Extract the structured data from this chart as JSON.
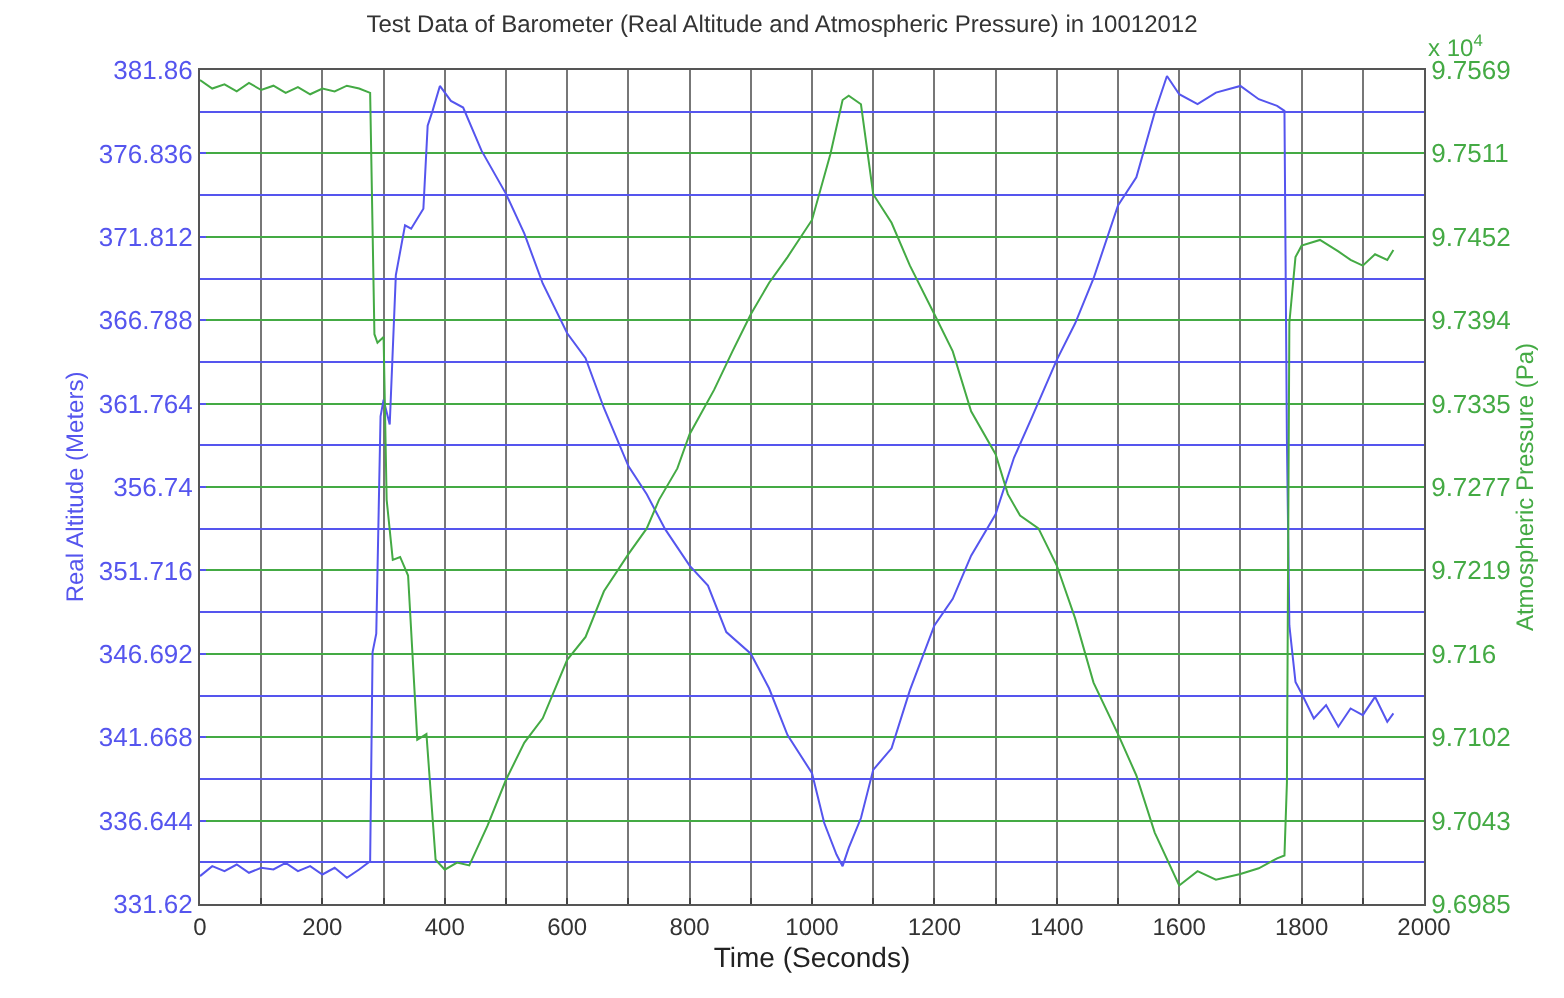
{
  "chart_data": {
    "type": "line",
    "title": "Test Data of Barometer (Real Altitude and Atmospheric Pressure) in 10012012",
    "xlabel": "Time (Seconds)",
    "ylabel": "Real Altitude (Meters)",
    "y2label": "Atmospheric Pressure (Pa)",
    "annotations": [
      "x 10$^{4}$"
    ],
    "grid": true,
    "xlim": [
      0,
      2000
    ],
    "xticks": [
      0,
      {
        "value": 100,
        "label": null
      },
      200,
      {
        "value": 300,
        "label": null
      },
      400,
      {
        "value": 500,
        "label": null
      },
      600,
      {
        "value": 700,
        "label": null
      },
      800,
      {
        "value": 900,
        "label": null
      },
      1000,
      {
        "value": 1100,
        "label": null
      },
      1200,
      {
        "value": 1300,
        "label": null
      },
      1400,
      {
        "value": 1500,
        "label": null
      },
      1600,
      {
        "value": 1700,
        "label": null
      },
      1800,
      {
        "value": 1900,
        "label": null
      },
      2000
    ],
    "ylim": [
      331.62,
      381.86
    ],
    "yticks": [
      331.62,
      {
        "value": 334.132,
        "label": null
      },
      336.644,
      {
        "value": 339.156,
        "label": null
      },
      341.668,
      {
        "value": 344.18,
        "label": null
      },
      346.692,
      {
        "value": 349.204,
        "label": null
      },
      351.716,
      {
        "value": 354.228,
        "label": null
      },
      356.74,
      {
        "value": 359.252,
        "label": null
      },
      361.764,
      {
        "value": 364.276,
        "label": null
      },
      366.788,
      {
        "value": 369.3,
        "label": null
      },
      371.812,
      {
        "value": 374.324,
        "label": null
      },
      376.836,
      {
        "value": 379.348,
        "label": null
      },
      381.86
    ],
    "y2lim": [
      9.6985,
      9.7569
    ],
    "y2ticks": [
      9.6985,
      9.7043,
      9.7102,
      9.716,
      9.7219,
      9.7277,
      9.7335,
      9.7394,
      9.7452,
      9.7511,
      9.7569
    ],
    "series": [
      {
        "color": "#5555ee",
        "x": [
          0,
          20,
          40,
          60,
          80,
          100,
          120,
          140,
          160,
          180,
          200,
          220,
          240,
          260,
          278,
          282,
          288,
          295,
          300,
          310,
          320,
          335,
          345,
          365,
          372,
          380,
          392,
          410,
          430,
          460,
          500,
          530,
          560,
          600,
          630,
          660,
          700,
          730,
          760,
          800,
          830,
          860,
          900,
          930,
          960,
          1000,
          1020,
          1040,
          1050,
          1060,
          1080,
          1100,
          1130,
          1160,
          1200,
          1230,
          1260,
          1300,
          1330,
          1360,
          1400,
          1430,
          1460,
          1500,
          1530,
          1560,
          1580,
          1600,
          1630,
          1660,
          1700,
          1730,
          1760,
          1772,
          1776,
          1780,
          1790,
          1800,
          1820,
          1840,
          1860,
          1880,
          1900,
          1920,
          1940,
          1950
        ],
        "values": [
          333.3,
          333.9,
          333.6,
          334.0,
          333.5,
          333.8,
          333.7,
          334.1,
          333.6,
          333.9,
          333.4,
          333.8,
          333.2,
          333.7,
          334.2,
          346.8,
          347.9,
          361.0,
          362.0,
          360.5,
          369.5,
          372.5,
          372.3,
          373.5,
          378.5,
          379.4,
          380.9,
          380.0,
          379.6,
          377.0,
          374.4,
          372.0,
          369.0,
          366.0,
          364.5,
          361.5,
          358.0,
          356.3,
          354.2,
          352.0,
          350.8,
          348.0,
          346.7,
          344.6,
          341.8,
          339.5,
          336.5,
          334.6,
          333.9,
          335.0,
          336.8,
          339.7,
          341.0,
          344.5,
          348.4,
          350.0,
          352.6,
          355.1,
          358.5,
          361.0,
          364.4,
          366.6,
          369.3,
          373.7,
          375.4,
          379.3,
          381.5,
          380.4,
          379.8,
          380.5,
          380.9,
          380.1,
          379.7,
          379.4,
          359.6,
          348.4,
          345.0,
          344.3,
          342.8,
          343.6,
          342.3,
          343.4,
          343.0,
          344.1,
          342.6,
          343.1
        ]
      },
      {
        "color": "#44aa44",
        "axis": "y2",
        "x": [
          0,
          20,
          40,
          60,
          80,
          100,
          120,
          140,
          160,
          180,
          200,
          220,
          240,
          260,
          278,
          285,
          290,
          300,
          305,
          315,
          327,
          340,
          355,
          370,
          385,
          400,
          420,
          440,
          470,
          500,
          530,
          560,
          600,
          630,
          660,
          700,
          730,
          750,
          780,
          800,
          840,
          870,
          900,
          930,
          960,
          1000,
          1030,
          1050,
          1060,
          1080,
          1100,
          1130,
          1160,
          1200,
          1230,
          1260,
          1300,
          1320,
          1340,
          1370,
          1400,
          1430,
          1460,
          1500,
          1530,
          1560,
          1600,
          1630,
          1660,
          1700,
          1730,
          1760,
          1772,
          1776,
          1780,
          1790,
          1800,
          1830,
          1860,
          1880,
          1900,
          1920,
          1940,
          1950
        ],
        "values": [
          9.7562,
          9.7556,
          9.7559,
          9.7554,
          9.756,
          9.7555,
          9.7558,
          9.7553,
          9.7557,
          9.7552,
          9.7556,
          9.7554,
          9.7558,
          9.7556,
          9.7553,
          9.7384,
          9.7378,
          9.7382,
          9.7268,
          9.7226,
          9.7228,
          9.7215,
          9.71,
          9.7104,
          9.7016,
          9.7009,
          9.7014,
          9.7012,
          9.704,
          9.7072,
          9.7098,
          9.7115,
          9.7156,
          9.7172,
          9.7204,
          9.723,
          9.7248,
          9.7268,
          9.729,
          9.7314,
          9.7345,
          9.7372,
          9.7398,
          9.742,
          9.7438,
          9.7464,
          9.751,
          9.7548,
          9.7551,
          9.7545,
          9.7482,
          9.7462,
          9.7432,
          9.7398,
          9.7372,
          9.733,
          9.73,
          9.7272,
          9.7257,
          9.7248,
          9.7222,
          9.7185,
          9.714,
          9.7104,
          9.7075,
          9.7035,
          9.6998,
          9.7008,
          9.7002,
          9.7006,
          9.701,
          9.7017,
          9.7019,
          9.707,
          9.7392,
          9.7438,
          9.7446,
          9.745,
          9.7442,
          9.7436,
          9.7432,
          9.744,
          9.7436,
          9.7443
        ]
      }
    ]
  }
}
